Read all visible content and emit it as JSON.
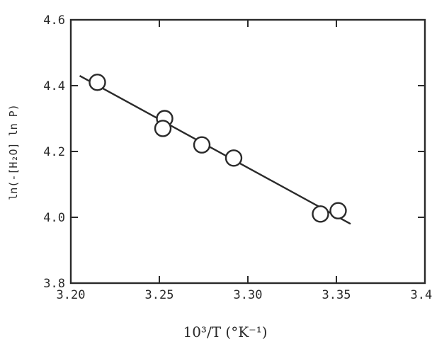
{
  "chart_data": {
    "type": "scatter",
    "title": "",
    "xlabel": "10³/T  (°K⁻¹)",
    "ylabel": "ln(-[H₂O] ln P)",
    "xlim": [
      3.2,
      3.4
    ],
    "ylim": [
      3.8,
      4.6
    ],
    "x_ticks": [
      "3.20",
      "3.25",
      "3.30",
      "3.35",
      "3.40"
    ],
    "y_ticks": [
      "3.8",
      "4.0",
      "4.2",
      "4.4",
      "4.6"
    ],
    "grid": false,
    "legend": "none",
    "points": [
      {
        "x": 3.215,
        "y": 4.41
      },
      {
        "x": 3.253,
        "y": 4.3
      },
      {
        "x": 3.252,
        "y": 4.27
      },
      {
        "x": 3.274,
        "y": 4.22
      },
      {
        "x": 3.292,
        "y": 4.18
      },
      {
        "x": 3.341,
        "y": 4.01
      },
      {
        "x": 3.351,
        "y": 4.02
      }
    ],
    "fit_line": {
      "x": [
        3.205,
        3.358
      ],
      "y": [
        4.43,
        3.98
      ]
    }
  }
}
